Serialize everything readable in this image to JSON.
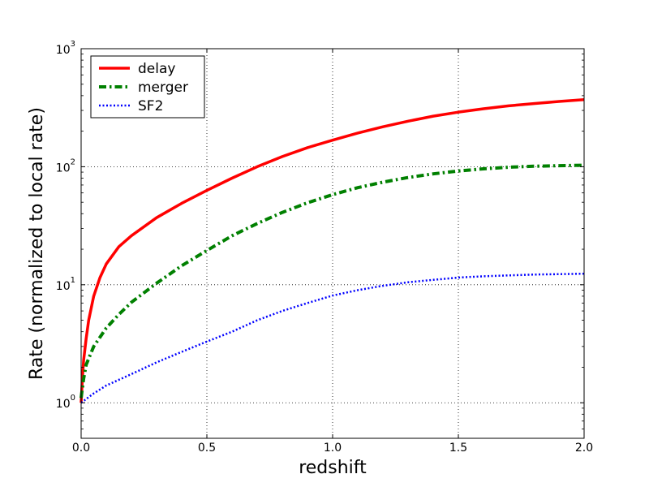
{
  "chart_data": {
    "type": "line",
    "title": "",
    "xlabel": "redshift",
    "ylabel": "Rate (normalized to local rate)",
    "xlim": [
      0,
      2
    ],
    "ylim": [
      0.5,
      1000
    ],
    "yscale": "log",
    "grid": true,
    "legend_position": "top-left",
    "x_ticks": [
      0.0,
      0.5,
      1.0,
      1.5,
      2.0
    ],
    "x_tick_labels": [
      "0.0",
      "0.5",
      "1.0",
      "1.5",
      "2.0"
    ],
    "y_ticks": [
      1,
      10,
      100,
      1000
    ],
    "y_tick_labels": [
      {
        "base": "10",
        "exp": "0"
      },
      {
        "base": "10",
        "exp": "1"
      },
      {
        "base": "10",
        "exp": "2"
      },
      {
        "base": "10",
        "exp": "3"
      }
    ],
    "series": [
      {
        "name": "delay",
        "color": "#ff0000",
        "style": "solid",
        "x": [
          0.0,
          0.005,
          0.01,
          0.02,
          0.03,
          0.05,
          0.075,
          0.1,
          0.15,
          0.2,
          0.3,
          0.4,
          0.5,
          0.6,
          0.7,
          0.8,
          0.9,
          1.0,
          1.1,
          1.2,
          1.3,
          1.4,
          1.5,
          1.6,
          1.7,
          1.8,
          1.9,
          2.0
        ],
        "y": [
          1.0,
          1.6,
          2.3,
          3.5,
          5.0,
          8.0,
          11.5,
          15.0,
          21.0,
          26.0,
          37.0,
          49.0,
          63.0,
          80.0,
          100.0,
          122.0,
          145.0,
          168.0,
          193.0,
          218.0,
          243.0,
          268.0,
          290.0,
          310.0,
          328.0,
          343.0,
          357.0,
          370.0
        ]
      },
      {
        "name": "merger",
        "color": "#008000",
        "style": "dashdot",
        "x": [
          0.0,
          0.01,
          0.02,
          0.05,
          0.1,
          0.15,
          0.2,
          0.3,
          0.4,
          0.5,
          0.6,
          0.7,
          0.8,
          0.9,
          1.0,
          1.1,
          1.2,
          1.3,
          1.4,
          1.5,
          1.6,
          1.7,
          1.8,
          1.9,
          2.0
        ],
        "y": [
          1.1,
          1.6,
          2.1,
          3.0,
          4.3,
          5.6,
          7.1,
          10.3,
          14.5,
          19.5,
          26.0,
          33.0,
          41.0,
          49.5,
          58.0,
          66.5,
          74.0,
          81.0,
          87.0,
          92.0,
          96.0,
          99.0,
          101.0,
          102.0,
          103.0
        ]
      },
      {
        "name": "SF2",
        "color": "#0000ff",
        "style": "dotted",
        "x": [
          0.0,
          0.05,
          0.1,
          0.2,
          0.3,
          0.4,
          0.5,
          0.6,
          0.7,
          0.8,
          0.9,
          1.0,
          1.1,
          1.2,
          1.3,
          1.4,
          1.5,
          1.6,
          1.7,
          1.8,
          1.9,
          2.0
        ],
        "y": [
          1.0,
          1.2,
          1.4,
          1.75,
          2.2,
          2.7,
          3.3,
          4.0,
          5.0,
          6.0,
          7.0,
          8.1,
          9.0,
          9.8,
          10.5,
          11.0,
          11.5,
          11.8,
          12.0,
          12.2,
          12.3,
          12.4
        ]
      }
    ]
  }
}
